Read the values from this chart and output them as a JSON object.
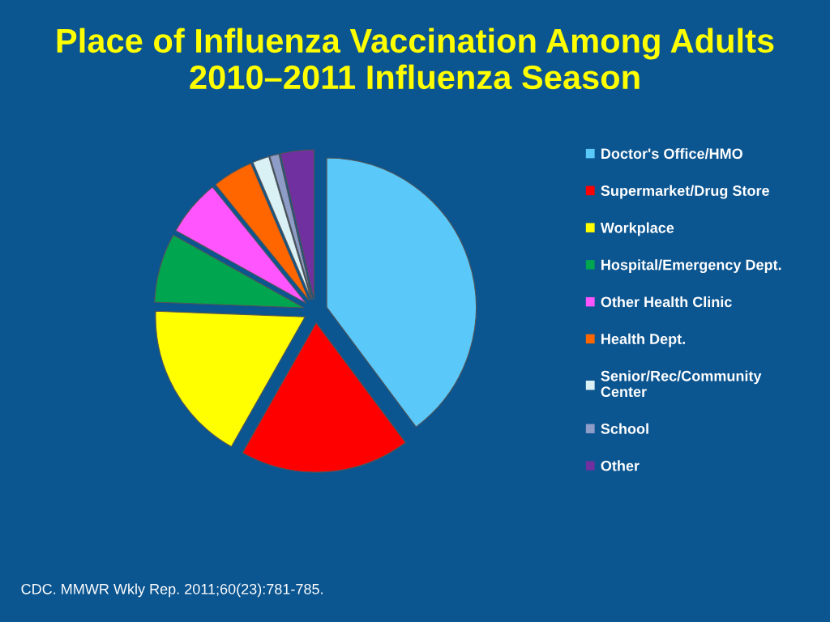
{
  "chart_data": {
    "type": "pie",
    "title": "Place of Influenza Vaccination Among Adults\n2010–2011 Influenza Season",
    "categories": [
      "Doctor's Office/HMO",
      "Supermarket/Drug Store",
      "Workplace",
      "Hospital/Emergency Dept.",
      "Other Health Clinic",
      "Health Dept.",
      "Senior/Rec/Community\nCenter",
      "School",
      "Other"
    ],
    "values": [
      39.8,
      18.4,
      17.4,
      7.5,
      6.1,
      4.4,
      1.8,
      1.0,
      3.6
    ],
    "colors": [
      "#5bc8fa",
      "#ff0000",
      "#ffff00",
      "#00a550",
      "#ff55ff",
      "#ff6600",
      "#d9f0f5",
      "#8e9cc8",
      "#7030a0"
    ],
    "legend": "right",
    "annotations": [
      "CDC. MMWR Wkly Rep. 2011;60(23):781-785."
    ]
  }
}
